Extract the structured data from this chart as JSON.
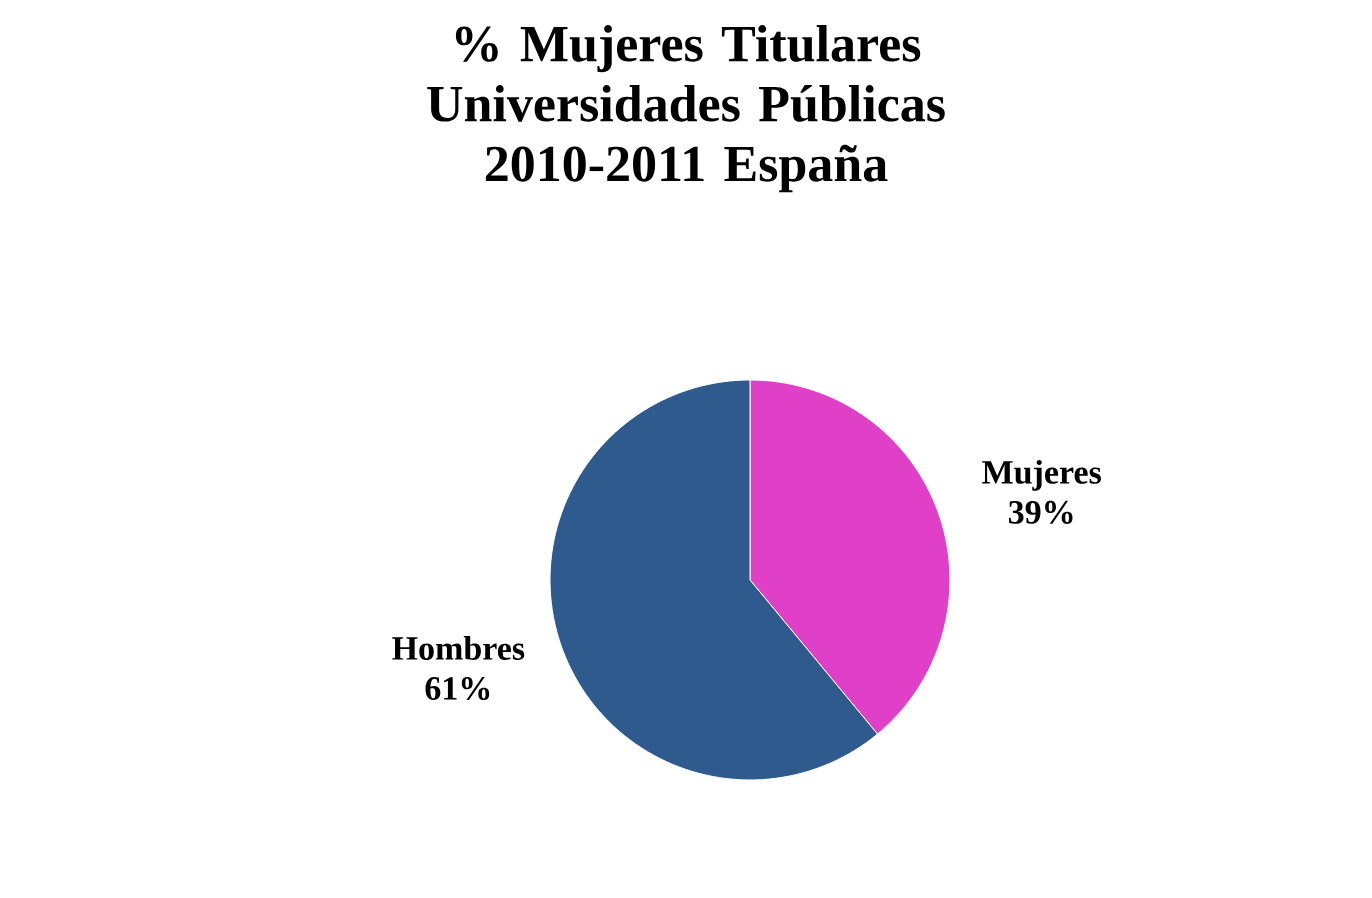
{
  "chart_data": {
    "type": "pie",
    "title": "% Mujeres Titulares Universidades Públicas 2010-2011 España",
    "categories": [
      "Mujeres",
      "Hombres"
    ],
    "values": [
      39,
      61
    ],
    "value_labels": [
      "39%",
      "61%"
    ],
    "colors": [
      "#e040c8",
      "#2f5a8e"
    ]
  }
}
